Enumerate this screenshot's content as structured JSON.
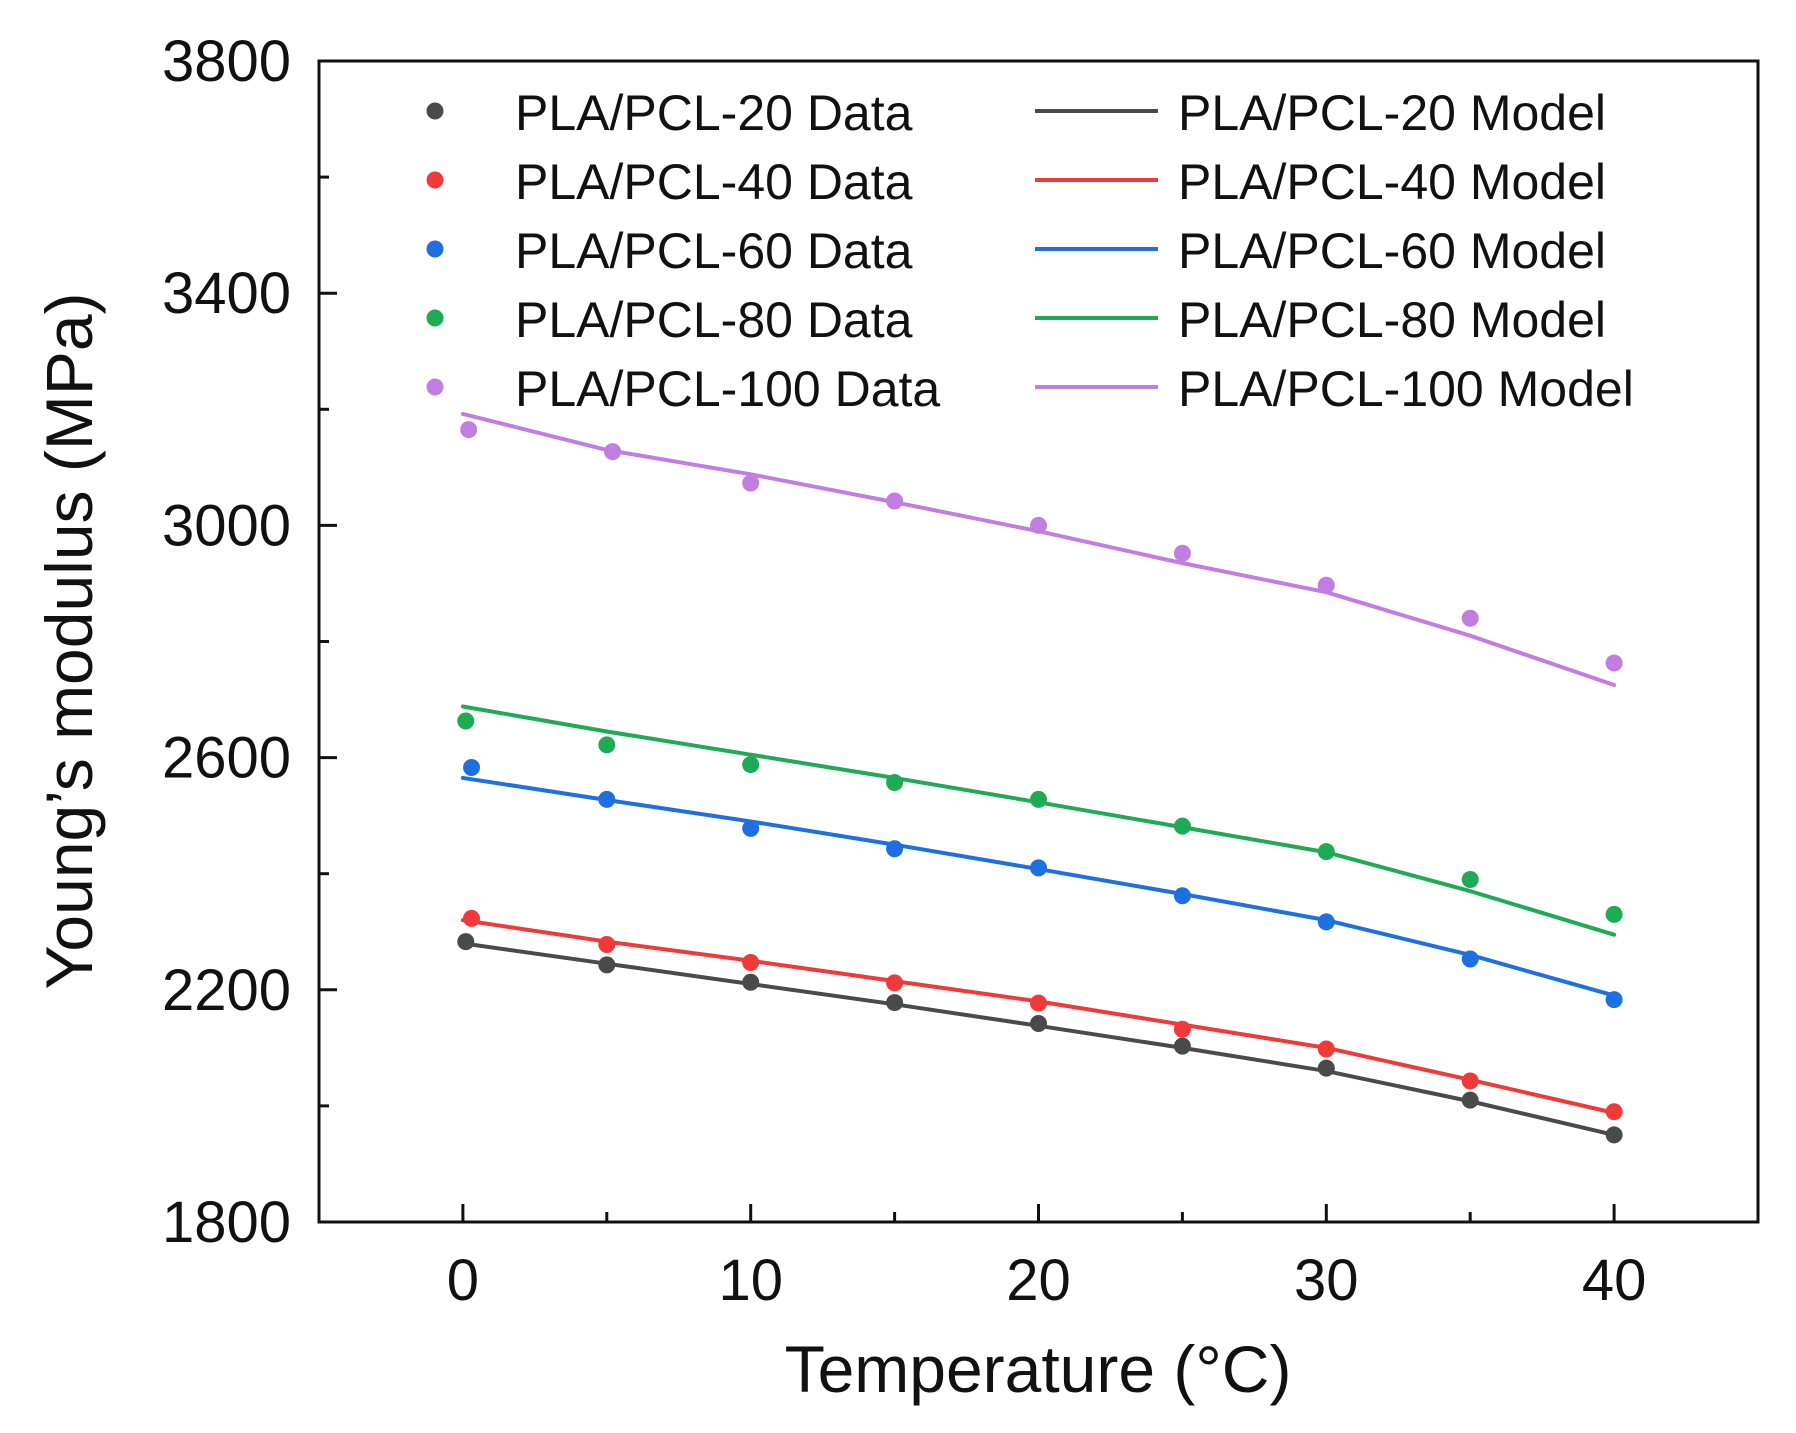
{
  "chart_data": {
    "type": "line",
    "title": "",
    "xlabel": "Temperature (°C)",
    "ylabel": "Young’s modulus (MPa)",
    "xlim": [
      -5,
      45
    ],
    "ylim": [
      1800,
      3800
    ],
    "xticks": [
      0,
      10,
      20,
      30,
      40
    ],
    "yticks": [
      1800,
      2200,
      2600,
      3000,
      3400,
      3800
    ],
    "x": [
      0,
      5,
      10,
      15,
      20,
      25,
      30,
      35,
      40
    ],
    "legend_position": "top",
    "series": [
      {
        "name": "PLA/PCL-20",
        "data_label": "PLA/PCL-20 Data",
        "model_label": "PLA/PCL-20 Model",
        "color": "#4a4a4a",
        "data_x": [
          0.1,
          5,
          10,
          15,
          20,
          25,
          30,
          35,
          40
        ],
        "data": [
          2283,
          2243,
          2213,
          2178,
          2142,
          2103,
          2065,
          2010,
          1950
        ],
        "model": [
          2280,
          2245,
          2210,
          2175,
          2138,
          2100,
          2060,
          2008,
          1950
        ]
      },
      {
        "name": "PLA/PCL-40",
        "data_label": "PLA/PCL-40 Data",
        "model_label": "PLA/PCL-40 Model",
        "color": "#f03a3a",
        "data_x": [
          0.3,
          5,
          10,
          15,
          20,
          25,
          30,
          35,
          40
        ],
        "data": [
          2323,
          2278,
          2247,
          2212,
          2177,
          2132,
          2098,
          2043,
          1990
        ],
        "model": [
          2320,
          2283,
          2250,
          2215,
          2180,
          2140,
          2100,
          2045,
          1988
        ]
      },
      {
        "name": "PLA/PCL-60",
        "data_label": "PLA/PCL-60 Data",
        "model_label": "PLA/PCL-60 Model",
        "color": "#1e6fe0",
        "data_x": [
          0.3,
          5,
          10,
          15,
          20,
          25,
          30,
          35,
          40
        ],
        "data": [
          2583,
          2528,
          2478,
          2443,
          2410,
          2362,
          2317,
          2253,
          2183
        ],
        "model": [
          2565,
          2527,
          2490,
          2450,
          2408,
          2365,
          2320,
          2260,
          2190
        ]
      },
      {
        "name": "PLA/PCL-80",
        "data_label": "PLA/PCL-80 Data",
        "model_label": "PLA/PCL-80 Model",
        "color": "#1faa55",
        "data_x": [
          0.1,
          5,
          10,
          15,
          20,
          25,
          30,
          35,
          40
        ],
        "data": [
          2663,
          2622,
          2588,
          2557,
          2528,
          2482,
          2438,
          2390,
          2330
        ],
        "model": [
          2688,
          2645,
          2605,
          2565,
          2523,
          2480,
          2437,
          2370,
          2295
        ]
      },
      {
        "name": "PLA/PCL-100",
        "data_label": "PLA/PCL-100 Data",
        "model_label": "PLA/PCL-100 Model",
        "color": "#c17ee0",
        "data_x": [
          0.2,
          5.2,
          10,
          15,
          20,
          25,
          30,
          35,
          40
        ],
        "data": [
          3165,
          3127,
          3073,
          3042,
          3000,
          2952,
          2897,
          2840,
          2763
        ],
        "model": [
          3192,
          3130,
          3088,
          3040,
          2990,
          2935,
          2885,
          2810,
          2725
        ]
      }
    ]
  }
}
